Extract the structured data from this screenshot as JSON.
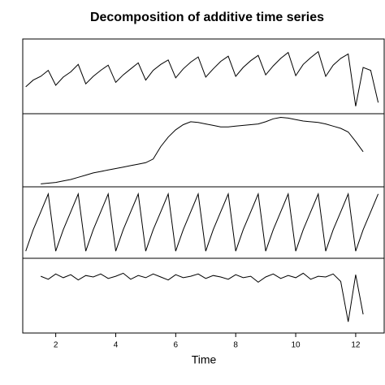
{
  "chart_data": [
    {
      "type": "line",
      "title": "Decomposition of additive time series",
      "x": [
        1,
        1.25,
        1.5,
        1.75,
        2,
        2.25,
        2.5,
        2.75,
        3,
        3.25,
        3.5,
        3.75,
        4,
        4.25,
        4.5,
        4.75,
        5,
        5.25,
        5.5,
        5.75,
        6,
        6.25,
        6.5,
        6.75,
        7,
        7.25,
        7.5,
        7.75,
        8,
        8.25,
        8.5,
        8.75,
        9,
        9.25,
        9.5,
        9.75,
        10,
        10.25,
        10.5,
        10.75,
        11,
        11.25,
        11.5,
        11.75,
        12,
        12.25,
        12.5,
        12.75
      ],
      "values": [
        3.6,
        4.5,
        5.0,
        5.8,
        3.8,
        4.9,
        5.6,
        6.6,
        4.0,
        5.0,
        5.8,
        6.5,
        4.2,
        5.2,
        6.0,
        6.8,
        4.5,
        5.8,
        6.6,
        7.2,
        4.8,
        6.0,
        6.9,
        7.6,
        4.9,
        6.0,
        7.0,
        7.7,
        5.0,
        6.2,
        7.1,
        7.8,
        5.2,
        6.4,
        7.4,
        8.2,
        5.1,
        6.6,
        7.5,
        8.3,
        5.0,
        6.5,
        7.4,
        8.0,
        1.0,
        6.2,
        5.8,
        1.5
      ],
      "xlim": [
        0.9,
        12.95
      ],
      "ylim": [
        0,
        10
      ]
    },
    {
      "type": "line",
      "x": [
        1,
        1.25,
        1.5,
        1.75,
        2,
        2.25,
        2.5,
        2.75,
        3,
        3.25,
        3.5,
        3.75,
        4,
        4.25,
        4.5,
        4.75,
        5,
        5.25,
        5.5,
        5.75,
        6,
        6.25,
        6.5,
        6.75,
        7,
        7.25,
        7.5,
        7.75,
        8,
        8.25,
        8.5,
        8.75,
        9,
        9.25,
        9.5,
        9.75,
        10,
        10.25,
        10.5,
        10.75,
        11,
        11.25,
        11.5,
        11.75,
        12,
        12.25,
        12.5,
        12.75
      ],
      "values": [
        null,
        null,
        0.4,
        0.5,
        0.6,
        0.8,
        1.0,
        1.3,
        1.6,
        1.9,
        2.1,
        2.3,
        2.5,
        2.7,
        2.9,
        3.1,
        3.3,
        3.8,
        5.5,
        6.8,
        7.8,
        8.5,
        8.9,
        8.8,
        8.6,
        8.4,
        8.2,
        8.2,
        8.3,
        8.4,
        8.5,
        8.6,
        8.9,
        9.3,
        9.5,
        9.4,
        9.2,
        9.0,
        8.9,
        8.8,
        8.6,
        8.3,
        8.0,
        7.5,
        6.2,
        4.8,
        null,
        null
      ],
      "xlim": [
        0.9,
        12.95
      ],
      "ylim": [
        0,
        10
      ]
    },
    {
      "type": "line",
      "x": [
        1,
        1.25,
        1.5,
        1.75,
        2,
        2.25,
        2.5,
        2.75,
        3,
        3.25,
        3.5,
        3.75,
        4,
        4.25,
        4.5,
        4.75,
        5,
        5.25,
        5.5,
        5.75,
        6,
        6.25,
        6.5,
        6.75,
        7,
        7.25,
        7.5,
        7.75,
        8,
        8.25,
        8.5,
        8.75,
        9,
        9.25,
        9.5,
        9.75,
        10,
        10.25,
        10.5,
        10.75,
        11,
        11.25,
        11.5,
        11.75,
        12,
        12.25,
        12.5,
        12.75
      ],
      "values": [
        1,
        4,
        6.5,
        9,
        1,
        4,
        6.5,
        9,
        1,
        4,
        6.5,
        9,
        1,
        4,
        6.5,
        9,
        1,
        4,
        6.5,
        9,
        1,
        4,
        6.5,
        9,
        1,
        4,
        6.5,
        9,
        1,
        4,
        6.5,
        9,
        1,
        4,
        6.5,
        9,
        1,
        4,
        6.5,
        9,
        1,
        4,
        6.5,
        9,
        1,
        4,
        6.5,
        9
      ],
      "xlim": [
        0.9,
        12.95
      ],
      "ylim": [
        0,
        10
      ]
    },
    {
      "type": "line",
      "xlabel": "Time",
      "x": [
        1,
        1.25,
        1.5,
        1.75,
        2,
        2.25,
        2.5,
        2.75,
        3,
        3.25,
        3.5,
        3.75,
        4,
        4.25,
        4.5,
        4.75,
        5,
        5.25,
        5.5,
        5.75,
        6,
        6.25,
        6.5,
        6.75,
        7,
        7.25,
        7.5,
        7.75,
        8,
        8.25,
        8.5,
        8.75,
        9,
        9.25,
        9.5,
        9.75,
        10,
        10.25,
        10.5,
        10.75,
        11,
        11.25,
        11.5,
        11.75,
        12,
        12.25,
        12.5,
        12.75
      ],
      "values": [
        null,
        null,
        7.6,
        7.2,
        7.9,
        7.4,
        7.8,
        7.1,
        7.7,
        7.5,
        7.9,
        7.3,
        7.6,
        8.0,
        7.2,
        7.7,
        7.4,
        7.9,
        7.5,
        7.1,
        7.8,
        7.4,
        7.6,
        7.9,
        7.3,
        7.7,
        7.5,
        7.2,
        7.8,
        7.4,
        7.6,
        6.8,
        7.5,
        7.9,
        7.3,
        7.7,
        7.4,
        8.0,
        7.2,
        7.6,
        7.5,
        7.9,
        6.9,
        1.5,
        7.8,
        2.5,
        null,
        null
      ],
      "xlim": [
        0.9,
        12.95
      ],
      "ylim": [
        0,
        10
      ],
      "xticks": [
        2,
        4,
        6,
        8,
        10,
        12
      ]
    }
  ]
}
